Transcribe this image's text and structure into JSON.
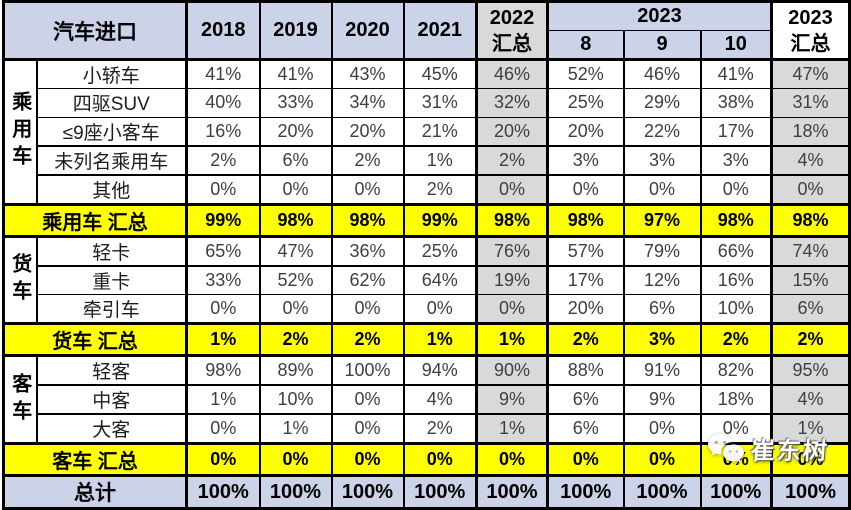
{
  "header": {
    "corner": "汽车进口",
    "years": [
      "2018",
      "2019",
      "2020",
      "2021"
    ],
    "total_2022": {
      "line1": "2022",
      "line2": "汇总"
    },
    "group_2023": "2023",
    "months": [
      "8",
      "9",
      "10"
    ],
    "total_2023": {
      "line1": "2023",
      "line2": "汇总"
    }
  },
  "groups": [
    {
      "name": "乘用车",
      "rows": [
        {
          "label": "小轿车",
          "values": [
            "41%",
            "41%",
            "43%",
            "45%",
            "46%",
            "52%",
            "46%",
            "41%",
            "47%"
          ]
        },
        {
          "label": "四驱SUV",
          "values": [
            "40%",
            "33%",
            "34%",
            "31%",
            "32%",
            "25%",
            "29%",
            "38%",
            "31%"
          ]
        },
        {
          "label": "≤9座小客车",
          "values": [
            "16%",
            "20%",
            "20%",
            "21%",
            "20%",
            "20%",
            "22%",
            "17%",
            "18%"
          ]
        },
        {
          "label": "未列名乘用车",
          "values": [
            "2%",
            "6%",
            "2%",
            "1%",
            "2%",
            "3%",
            "3%",
            "3%",
            "4%"
          ]
        },
        {
          "label": "其他",
          "values": [
            "0%",
            "0%",
            "0%",
            "2%",
            "0%",
            "0%",
            "0%",
            "0%",
            "0%"
          ]
        }
      ],
      "total": {
        "label": "乘用车 汇总",
        "values": [
          "99%",
          "98%",
          "98%",
          "99%",
          "98%",
          "98%",
          "97%",
          "98%",
          "98%"
        ]
      }
    },
    {
      "name": "货车",
      "rows": [
        {
          "label": "轻卡",
          "values": [
            "65%",
            "47%",
            "36%",
            "25%",
            "76%",
            "57%",
            "79%",
            "66%",
            "74%"
          ]
        },
        {
          "label": "重卡",
          "values": [
            "33%",
            "52%",
            "62%",
            "64%",
            "19%",
            "17%",
            "12%",
            "16%",
            "15%"
          ]
        },
        {
          "label": "牵引车",
          "values": [
            "0%",
            "0%",
            "0%",
            "0%",
            "0%",
            "20%",
            "6%",
            "10%",
            "6%"
          ]
        }
      ],
      "total": {
        "label": "货车 汇总",
        "values": [
          "1%",
          "2%",
          "2%",
          "1%",
          "1%",
          "2%",
          "3%",
          "2%",
          "2%"
        ]
      }
    },
    {
      "name": "客车",
      "rows": [
        {
          "label": "轻客",
          "values": [
            "98%",
            "89%",
            "100%",
            "94%",
            "90%",
            "88%",
            "91%",
            "82%",
            "95%"
          ]
        },
        {
          "label": "中客",
          "values": [
            "1%",
            "10%",
            "0%",
            "4%",
            "9%",
            "6%",
            "9%",
            "18%",
            "4%"
          ]
        },
        {
          "label": "大客",
          "values": [
            "0%",
            "1%",
            "0%",
            "2%",
            "1%",
            "6%",
            "0%",
            "0%",
            "1%"
          ]
        }
      ],
      "total": {
        "label": "客车 汇总",
        "values": [
          "0%",
          "0%",
          "0%",
          "0%",
          "0%",
          "0%",
          "0%",
          "0%",
          "0%"
        ]
      }
    }
  ],
  "grand_total": {
    "label": "总计",
    "values": [
      "100%",
      "100%",
      "100%",
      "100%",
      "100%",
      "100%",
      "100%",
      "100%",
      "100%"
    ]
  },
  "watermark": {
    "text": "崔东树",
    "icon": "wechat-icon"
  },
  "colors": {
    "header_blue": "#ccd3e8",
    "summary_yellow": "#ffff00",
    "total_column_gray": "#d9d9d9",
    "border": "#000000"
  }
}
